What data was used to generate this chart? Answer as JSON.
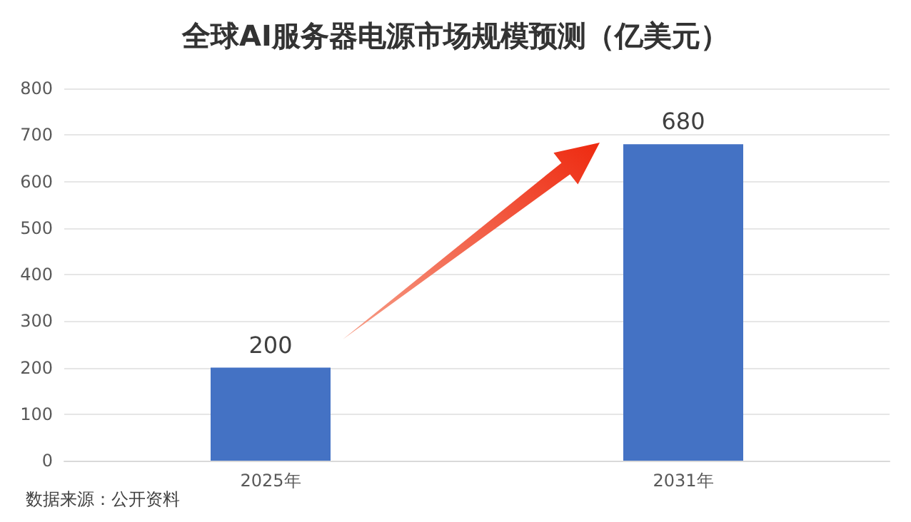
{
  "chart_data": {
    "type": "bar",
    "title": "全球AI服务器电源市场规模预测（亿美元）",
    "categories": [
      "2025年",
      "2031年"
    ],
    "values": [
      200,
      680
    ],
    "color": "#4472c4",
    "ylim": [
      0,
      800
    ],
    "yticks": [
      0,
      100,
      200,
      300,
      400,
      500,
      600,
      700,
      800
    ],
    "grid": "y",
    "data_labels": true,
    "annotations": [
      "数据来源：公开资料"
    ]
  }
}
